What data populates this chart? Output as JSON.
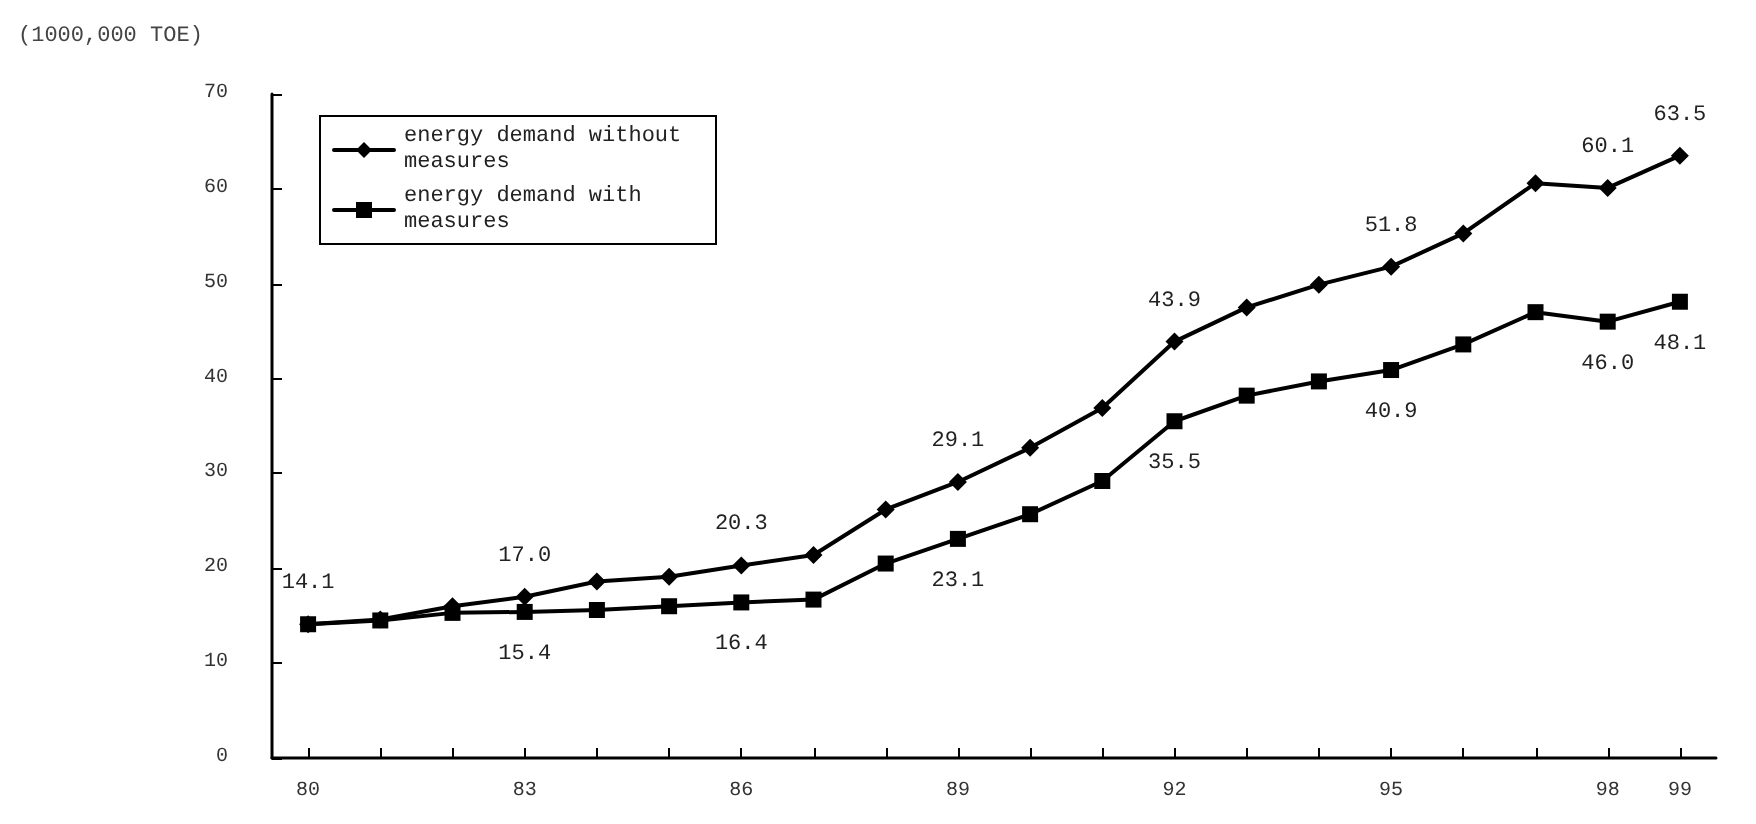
{
  "chart_data": {
    "type": "line",
    "ylabel": "(1000,000 TOE)",
    "categories": [
      "80",
      null,
      null,
      "83",
      null,
      null,
      "86",
      null,
      null,
      "89",
      null,
      null,
      "92",
      null,
      null,
      "95",
      null,
      null,
      "98",
      "99"
    ],
    "series": [
      {
        "name": "energy demand without measures",
        "color": "#000000",
        "marker": "diamond",
        "values": [
          14.1,
          14.6,
          16.0,
          17.0,
          18.6,
          19.1,
          20.3,
          21.4,
          26.2,
          29.1,
          32.7,
          36.9,
          43.9,
          47.5,
          49.9,
          51.8,
          55.3,
          60.6,
          60.1,
          63.5
        ],
        "value_labels": [
          "14.1",
          null,
          null,
          "17.0",
          null,
          null,
          "20.3",
          null,
          null,
          "29.1",
          null,
          null,
          "43.9",
          null,
          null,
          "51.8",
          null,
          null,
          "60.1",
          "63.5"
        ]
      },
      {
        "name": "energy demand with measures",
        "color": "#000000",
        "marker": "square",
        "values": [
          14.1,
          14.5,
          15.3,
          15.4,
          15.6,
          16.0,
          16.4,
          16.7,
          20.5,
          23.1,
          25.7,
          29.2,
          35.5,
          38.2,
          39.7,
          40.9,
          43.6,
          47.0,
          46.0,
          48.1
        ],
        "value_labels": [
          null,
          null,
          null,
          "15.4",
          null,
          null,
          "16.4",
          null,
          null,
          "23.1",
          null,
          null,
          "35.5",
          null,
          null,
          "40.9",
          null,
          null,
          "46.0",
          "48.1"
        ]
      }
    ],
    "ylim": [
      0,
      70
    ],
    "yticks": [
      0,
      10,
      20,
      30,
      40,
      50,
      60,
      70
    ],
    "grid": false,
    "legend": "top left",
    "line_style": "solid"
  }
}
